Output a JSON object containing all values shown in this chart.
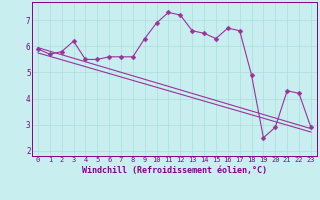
{
  "xlabel": "Windchill (Refroidissement éolien,°C)",
  "bg_color": "#c8eef0",
  "line_color": "#993399",
  "xlim": [
    -0.5,
    23.5
  ],
  "ylim": [
    1.8,
    7.7
  ],
  "yticks": [
    2,
    3,
    4,
    5,
    6,
    7
  ],
  "xticks": [
    0,
    1,
    2,
    3,
    4,
    5,
    6,
    7,
    8,
    9,
    10,
    11,
    12,
    13,
    14,
    15,
    16,
    17,
    18,
    19,
    20,
    21,
    22,
    23
  ],
  "main_x": [
    0,
    1,
    2,
    3,
    4,
    5,
    6,
    7,
    8,
    9,
    10,
    11,
    12,
    13,
    14,
    15,
    16,
    17,
    18,
    19,
    20,
    21,
    22,
    23
  ],
  "main_y": [
    5.9,
    5.7,
    5.8,
    6.2,
    5.5,
    5.5,
    5.6,
    5.6,
    5.6,
    6.3,
    6.9,
    7.3,
    7.2,
    6.6,
    6.5,
    6.3,
    6.7,
    6.6,
    4.9,
    2.5,
    2.9,
    4.3,
    4.2,
    2.9
  ],
  "line2_x": [
    0,
    23
  ],
  "line2_y": [
    5.95,
    2.85
  ],
  "line3_x": [
    0,
    23
  ],
  "line3_y": [
    5.75,
    2.72
  ],
  "grid_color": "#aadddd",
  "tick_color": "#880088",
  "xlabel_color": "#880088",
  "xlabel_fontsize": 6.0,
  "marker_size": 2.5,
  "line_width": 0.8
}
